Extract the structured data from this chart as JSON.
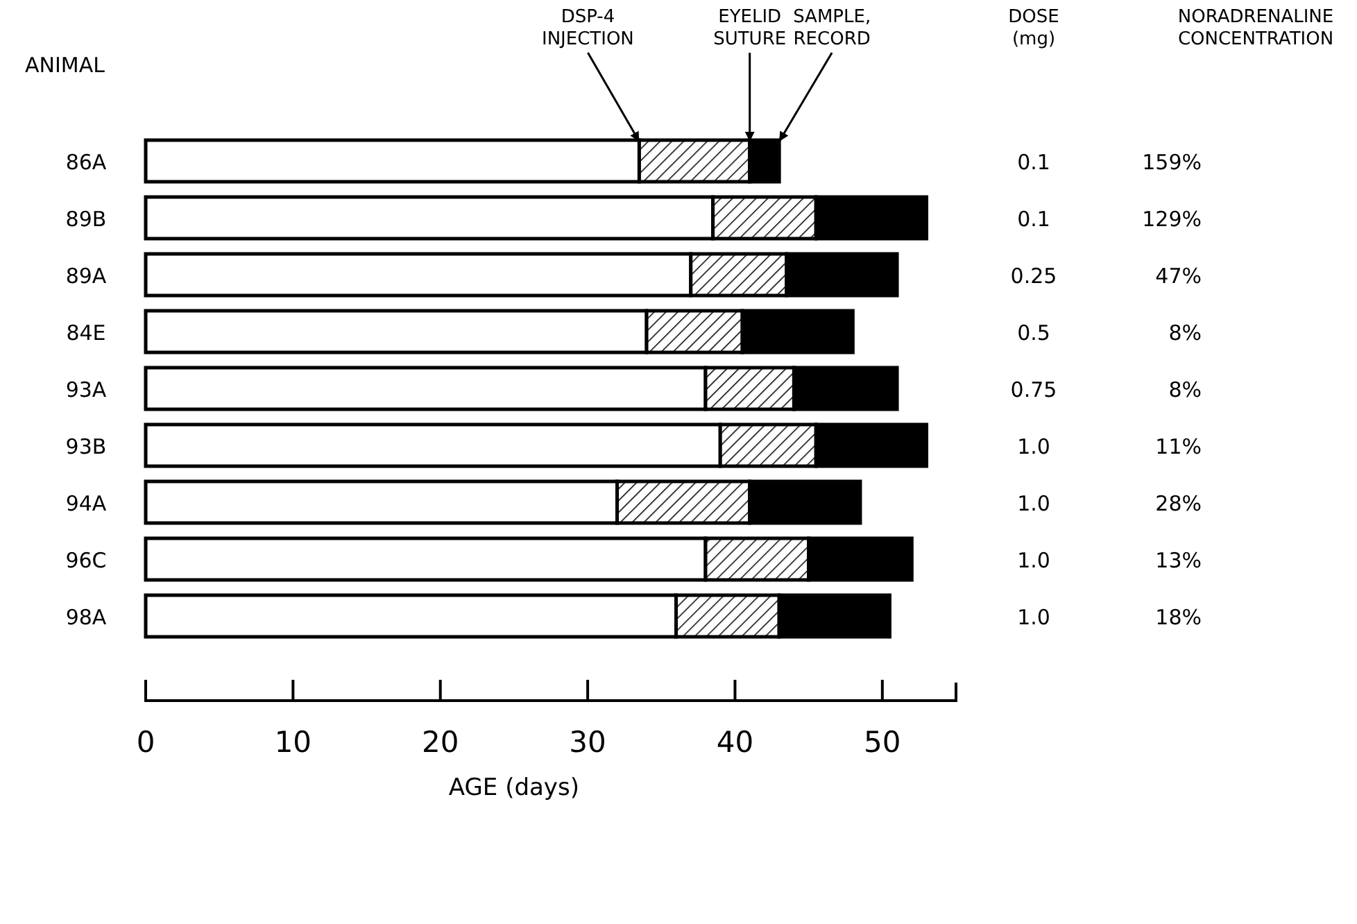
{
  "chart_data": {
    "type": "bar",
    "orientation": "horizontal",
    "stacked": true,
    "ylabel": "ANIMAL",
    "xlabel": "AGE (days)",
    "categories": [
      "86A",
      "89B",
      "89A",
      "84E",
      "93A",
      "93B",
      "94A",
      "96C",
      "98A"
    ],
    "series": [
      {
        "color": "#ffffff",
        "values": [
          33.5,
          38.5,
          37,
          34,
          38,
          39,
          32,
          38,
          36
        ]
      },
      {
        "color": "#000000",
        "values": [
          7.5,
          7,
          6.5,
          6.5,
          6,
          6.5,
          9,
          7,
          7
        ]
      },
      {
        "color": "#000000",
        "values": [
          2,
          7.5,
          7.5,
          7.5,
          7,
          7.5,
          7.5,
          7,
          7.5
        ]
      }
    ],
    "xlim": [
      0,
      55
    ],
    "xticks": [
      0,
      10,
      20,
      30,
      40,
      50
    ],
    "annotations": [
      {
        "text": "DSP-4 INJECTION",
        "x": 33.5
      },
      {
        "text": "EYELID SUTURE",
        "x": 41
      },
      {
        "text": "SAMPLE, RECORD",
        "x": 43
      },
      "DOSE (mg)",
      "NORADRENALINE CONCENTRATION",
      "0.1",
      "159%",
      "0.1",
      "129%",
      "0.25",
      "47%",
      "0.5",
      "8%",
      "0.75",
      "8%",
      "1.0",
      "11%",
      "1.0",
      "28%",
      "1.0",
      "13%",
      "1.0",
      "18%"
    ]
  }
}
